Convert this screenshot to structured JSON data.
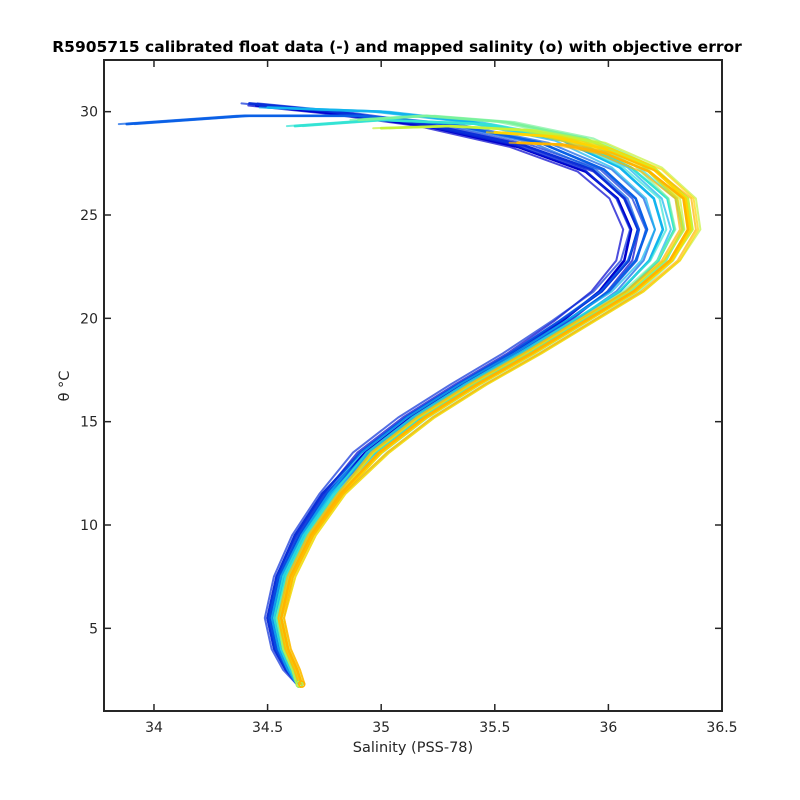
{
  "chart_data": {
    "type": "line",
    "title": "R5905715 calibrated float data (-) and mapped salinity (o) with objective error",
    "xlabel": "Salinity (PSS-78)",
    "ylabel": "θ °C",
    "xlim": [
      33.78,
      36.5
    ],
    "ylim": [
      1.0,
      32.5
    ],
    "xticks": [
      34,
      34.5,
      35,
      35.5,
      36,
      36.5
    ],
    "xtick_labels": [
      "34",
      "34.5",
      "35",
      "35.5",
      "36",
      "36.5"
    ],
    "yticks": [
      5,
      10,
      15,
      20,
      25,
      30
    ],
    "ytick_labels": [
      "5",
      "10",
      "15",
      "20",
      "25",
      "30"
    ],
    "grid": false,
    "colormap": [
      "#0000cd",
      "#0a60e6",
      "#12b4ee",
      "#33e3d4",
      "#7af29c",
      "#c4f23a",
      "#ffd400",
      "#ffb400"
    ],
    "series": [
      {
        "color": "#0000cd",
        "x": [
          34.64,
          34.59,
          34.54,
          34.51,
          34.55,
          34.64,
          34.76,
          34.93,
          35.13,
          35.36,
          35.59,
          35.8,
          35.96,
          36.07,
          36.1,
          36.04,
          35.9,
          35.6,
          35.2,
          34.8,
          34.45
        ],
        "y": [
          2.3,
          3.0,
          4.0,
          5.5,
          7.5,
          9.5,
          11.5,
          13.5,
          15.2,
          16.8,
          18.3,
          19.9,
          21.3,
          22.8,
          24.3,
          25.8,
          27.1,
          28.3,
          29.3,
          29.9,
          30.3
        ]
      },
      {
        "color": "#0a2fd8",
        "x": [
          34.64,
          34.58,
          34.53,
          34.5,
          34.54,
          34.62,
          34.74,
          34.91,
          35.11,
          35.34,
          35.57,
          35.79,
          35.97,
          36.09,
          36.13,
          36.07,
          35.93,
          35.62,
          35.2,
          34.8,
          34.42
        ],
        "y": [
          2.3,
          3.0,
          4.0,
          5.5,
          7.5,
          9.5,
          11.5,
          13.5,
          15.2,
          16.8,
          18.3,
          19.9,
          21.3,
          22.8,
          24.3,
          25.8,
          27.2,
          28.4,
          29.4,
          30.0,
          30.4
        ]
      },
      {
        "color": "#0a60e6",
        "x": [
          34.64,
          34.6,
          34.55,
          34.52,
          34.56,
          34.65,
          34.77,
          34.94,
          35.14,
          35.37,
          35.6,
          35.82,
          36.0,
          36.12,
          36.17,
          36.12,
          35.98,
          35.7,
          35.3,
          34.9,
          34.4,
          33.88
        ],
        "y": [
          2.3,
          3.0,
          4.0,
          5.5,
          7.5,
          9.5,
          11.5,
          13.5,
          15.2,
          16.8,
          18.3,
          19.9,
          21.3,
          22.8,
          24.3,
          25.8,
          27.2,
          28.5,
          29.4,
          29.8,
          29.8,
          29.4
        ]
      },
      {
        "color": "#12b4ee",
        "x": [
          34.64,
          34.6,
          34.56,
          34.53,
          34.57,
          34.66,
          34.78,
          34.95,
          35.15,
          35.38,
          35.62,
          35.85,
          36.05,
          36.18,
          36.24,
          36.2,
          36.05,
          35.8,
          35.4,
          35.0,
          34.5
        ],
        "y": [
          2.3,
          3.0,
          4.0,
          5.5,
          7.5,
          9.5,
          11.5,
          13.5,
          15.2,
          16.8,
          18.3,
          19.9,
          21.3,
          22.8,
          24.3,
          25.8,
          27.3,
          28.6,
          29.5,
          30.0,
          30.2
        ]
      },
      {
        "color": "#33e3d4",
        "x": [
          34.64,
          34.61,
          34.57,
          34.54,
          34.58,
          34.67,
          34.8,
          34.97,
          35.17,
          35.4,
          35.64,
          35.88,
          36.08,
          36.22,
          36.29,
          36.26,
          36.1,
          35.85,
          35.45,
          35.0,
          34.62
        ],
        "y": [
          2.3,
          3.0,
          4.0,
          5.5,
          7.5,
          9.5,
          11.5,
          13.5,
          15.2,
          16.8,
          18.3,
          19.9,
          21.3,
          22.8,
          24.3,
          25.8,
          27.3,
          28.6,
          29.4,
          29.6,
          29.3
        ]
      },
      {
        "color": "#7af29c",
        "x": [
          34.64,
          34.62,
          34.58,
          34.55,
          34.6,
          34.69,
          34.82,
          34.99,
          35.19,
          35.42,
          35.66,
          35.9,
          36.1,
          36.25,
          36.33,
          36.3,
          36.15,
          35.9,
          35.55,
          35.2,
          34.9
        ],
        "y": [
          2.3,
          3.0,
          4.0,
          5.5,
          7.5,
          9.5,
          11.5,
          13.5,
          15.2,
          16.8,
          18.3,
          19.9,
          21.3,
          22.8,
          24.3,
          25.8,
          27.4,
          28.7,
          29.5,
          29.8,
          29.6
        ]
      },
      {
        "color": "#c4f23a",
        "x": [
          34.64,
          34.62,
          34.58,
          34.56,
          34.61,
          34.7,
          34.83,
          35.0,
          35.2,
          35.43,
          35.67,
          35.91,
          36.12,
          36.28,
          36.37,
          36.35,
          36.2,
          35.95,
          35.65,
          35.3,
          35.0
        ],
        "y": [
          2.3,
          3.0,
          4.0,
          5.5,
          7.5,
          9.5,
          11.5,
          13.5,
          15.2,
          16.8,
          18.3,
          19.9,
          21.3,
          22.8,
          24.3,
          25.8,
          27.3,
          28.5,
          29.1,
          29.3,
          29.2
        ]
      },
      {
        "color": "#ffd400",
        "x": [
          34.65,
          34.63,
          34.59,
          34.56,
          34.61,
          34.7,
          34.83,
          35.0,
          35.2,
          35.43,
          35.67,
          35.91,
          36.12,
          36.28,
          36.36,
          36.34,
          36.2,
          35.98,
          35.75,
          35.5
        ],
        "y": [
          2.3,
          3.0,
          4.0,
          5.5,
          7.5,
          9.5,
          11.5,
          13.5,
          15.2,
          16.8,
          18.3,
          19.9,
          21.3,
          22.8,
          24.3,
          25.8,
          27.2,
          28.2,
          28.8,
          29.0
        ]
      },
      {
        "color": "#ffb400",
        "x": [
          34.65,
          34.63,
          34.59,
          34.56,
          34.6,
          34.69,
          34.82,
          34.99,
          35.19,
          35.42,
          35.66,
          35.9,
          36.11,
          36.27,
          36.35,
          36.33,
          36.18,
          35.98,
          35.8,
          35.6
        ],
        "y": [
          2.3,
          3.0,
          4.0,
          5.5,
          7.5,
          9.5,
          11.5,
          13.5,
          15.2,
          16.8,
          18.3,
          19.9,
          21.3,
          22.8,
          24.3,
          25.8,
          27.1,
          28.0,
          28.4,
          28.5
        ]
      }
    ]
  }
}
